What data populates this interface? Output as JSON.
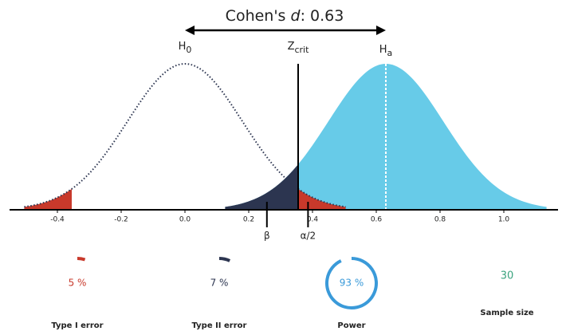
{
  "chart_data": {
    "type": "power",
    "title": {
      "prefix": "Cohen's ",
      "symbol": "d",
      "suffix": ": "
    },
    "effect_size": 0.63,
    "distributions": [
      {
        "label": "H",
        "sub": "0",
        "mean": 0,
        "sd": 0.18,
        "color": "#2c3550"
      },
      {
        "label": "H",
        "sub": "a",
        "sd": 0.18,
        "color": "#67cbe8"
      }
    ],
    "critical": {
      "label": "Z",
      "sub": "crit",
      "value": 0.355
    },
    "markers": [
      {
        "label": "β",
        "x": 0.257
      },
      {
        "label": "α/2",
        "x": 0.386
      }
    ],
    "beta_color": "#2c3550",
    "alpha_color": "#c8392b",
    "xlim": [
      -0.55,
      1.17
    ],
    "xticks": [
      -0.4,
      -0.2,
      {
        "value": 0,
        "label": "0.0"
      },
      0.2,
      0.4,
      0.6,
      0.8,
      {
        "value": 1,
        "label": "1.0"
      }
    ]
  },
  "stats": [
    {
      "label": "Type I error",
      "value": 5,
      "value_label": "5 %",
      "color": "#c8392b"
    },
    {
      "label": "Type II error",
      "value": 7,
      "value_label": "7 %",
      "color": "#2c3550"
    },
    {
      "label": "Power",
      "value": 93,
      "value_label": "93 %",
      "color": "#3a9ad9"
    },
    {
      "label": "Sample size",
      "value": 30,
      "color": "#3aa37e"
    }
  ]
}
